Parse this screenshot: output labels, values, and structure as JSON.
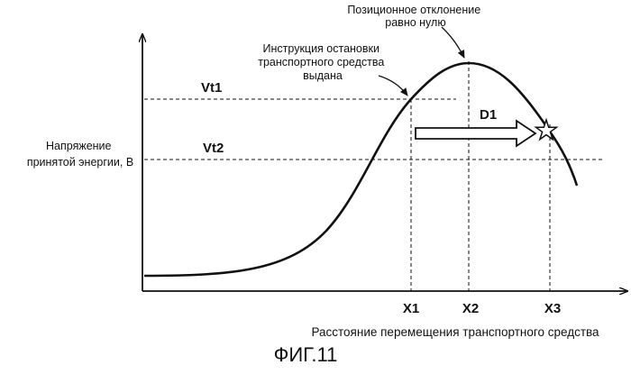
{
  "figure": {
    "caption": "ФИГ.11",
    "y_axis_label": [
      "Напряжение",
      "принятой энергии, В"
    ],
    "x_axis_label": "Расстояние перемещения транспортного средства",
    "annotations": {
      "stop_instruction": [
        "Инструкция остановки",
        "транспортного средства",
        "выдана"
      ],
      "zero_deviation": [
        "Позиционное отклонение",
        "равно нулю"
      ]
    },
    "levels": {
      "vt1": "Vt1",
      "vt2": "Vt2"
    },
    "positions": {
      "x1": "X1",
      "x2": "X2",
      "x3": "X3"
    },
    "arrow_label": "D1"
  }
}
